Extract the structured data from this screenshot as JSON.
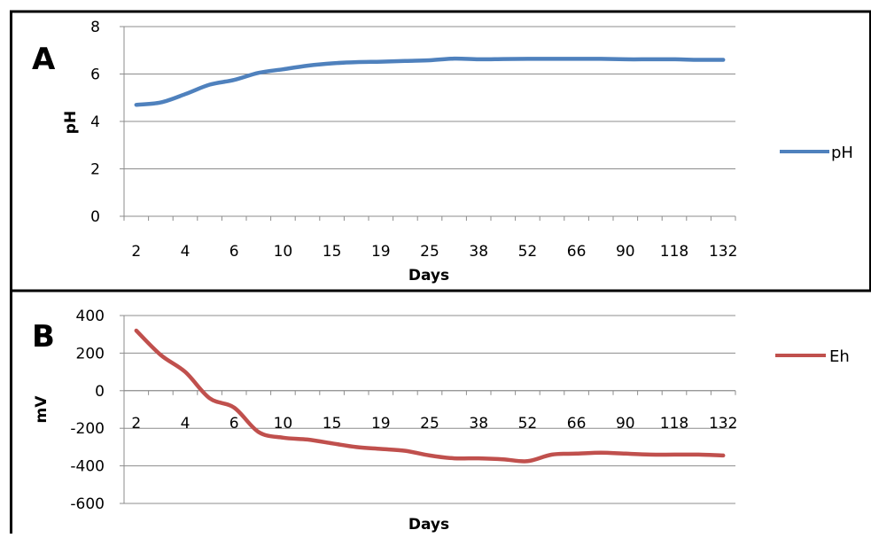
{
  "chart_data": [
    {
      "type": "line",
      "panel_label": "A",
      "xlabel": "Days",
      "ylabel": "pH",
      "ylim": [
        0,
        8
      ],
      "yticks": [
        0,
        2,
        4,
        6,
        8
      ],
      "grid": true,
      "legend_position": "right",
      "x": [
        "2",
        "3",
        "4",
        "5",
        "6",
        "8",
        "10",
        "12",
        "15",
        "17",
        "19",
        "22",
        "25",
        "30",
        "38",
        "45",
        "52",
        "59",
        "66",
        "80",
        "90",
        "104",
        "118",
        "125",
        "132"
      ],
      "xtick_labels": [
        "2",
        "4",
        "6",
        "10",
        "15",
        "19",
        "25",
        "38",
        "52",
        "66",
        "90",
        "118",
        "132"
      ],
      "series": [
        {
          "name": "pH",
          "color": "#4f81bd",
          "values": [
            4.7,
            4.8,
            5.15,
            5.55,
            5.75,
            6.05,
            6.2,
            6.35,
            6.45,
            6.5,
            6.52,
            6.55,
            6.58,
            6.65,
            6.62,
            6.63,
            6.64,
            6.64,
            6.64,
            6.64,
            6.62,
            6.62,
            6.62,
            6.6,
            6.6
          ]
        }
      ]
    },
    {
      "type": "line",
      "panel_label": "B",
      "xlabel": "Days",
      "ylabel": "mV",
      "ylim": [
        -600,
        400
      ],
      "yticks": [
        -600,
        -400,
        -200,
        0,
        200,
        400
      ],
      "grid": true,
      "legend_position": "right",
      "x": [
        "2",
        "3",
        "4",
        "5",
        "6",
        "8",
        "10",
        "12",
        "15",
        "17",
        "19",
        "22",
        "25",
        "30",
        "38",
        "45",
        "52",
        "59",
        "66",
        "80",
        "90",
        "104",
        "118",
        "125",
        "132"
      ],
      "xtick_labels": [
        "2",
        "4",
        "6",
        "10",
        "15",
        "19",
        "25",
        "38",
        "52",
        "66",
        "90",
        "118",
        "132"
      ],
      "series": [
        {
          "name": "Eh",
          "color": "#c0504d",
          "values": [
            320,
            190,
            100,
            -40,
            -90,
            -220,
            -250,
            -260,
            -280,
            -300,
            -310,
            -320,
            -345,
            -360,
            -360,
            -365,
            -375,
            -340,
            -335,
            -330,
            -335,
            -340,
            -340,
            -340,
            -345
          ]
        }
      ]
    }
  ]
}
